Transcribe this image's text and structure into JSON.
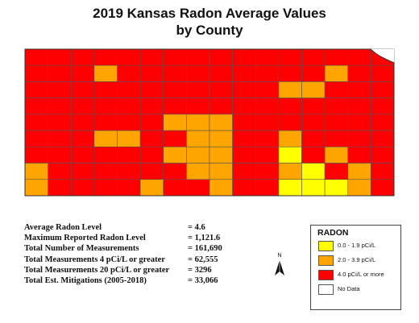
{
  "title_line1": "2019 Kansas Radon Average Values",
  "title_line2": "by County",
  "colors": {
    "low": "#ffff00",
    "mid": "#ffa500",
    "high": "#ff0000",
    "nodata": "#ffffff",
    "border": "#555555"
  },
  "map_rows": [
    "HHHHHHHHHHHHHHHH",
    "HHHMHHHHHHHHHMHH",
    "HHHHHHHHHHHMMHHH",
    "HHHHHHHHHHHHHHHH",
    "HHHHHHMMMHHHHHHH",
    "HHHMMHHMMHHMHHHH",
    "HHHHHHMMMHHLHMHH",
    "MHHHHHHMMHHMLHMH",
    "MHHHHMHHMHHLLLMH"
  ],
  "stats": [
    {
      "label": "Average Radon Level",
      "value": "= 4.6"
    },
    {
      "label": "Maximum Reported Radon Level",
      "value": "= 1,121.6"
    },
    {
      "label": "Total Number of Measurements",
      "value": "= 161,690"
    },
    {
      "label": "Total Measurements 4 pCi/L or greater",
      "value": "= 62,555"
    },
    {
      "label": "Total Measurements 20 pCi/L or greater",
      "value": "= 3296"
    },
    {
      "label": "Total Est. Mitigations (2005-2018)",
      "value": "= 33,066"
    }
  ],
  "north_label": "N",
  "legend": {
    "title": "RADON",
    "items": [
      {
        "label": "0.0 - 1.9 pCi/L",
        "color": "#ffff00"
      },
      {
        "label": "2.0 - 3.9 pCi/L",
        "color": "#ffa500"
      },
      {
        "label": "4.0 pCi/L or more",
        "color": "#ff0000"
      },
      {
        "label": "No Data",
        "color": "#ffffff"
      }
    ]
  }
}
